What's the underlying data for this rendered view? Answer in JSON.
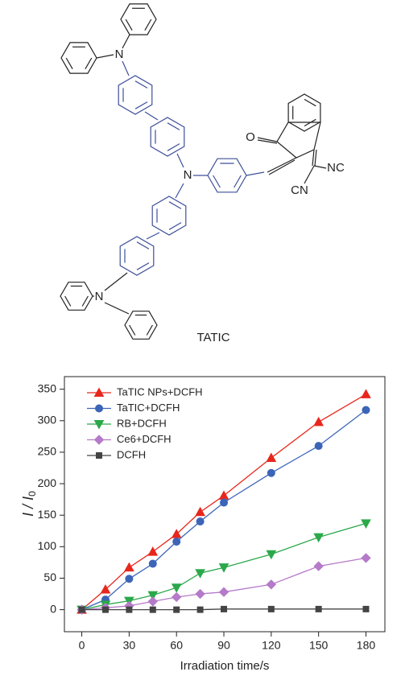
{
  "structure": {
    "atoms": [
      "N",
      "N",
      "N",
      "O",
      "NC",
      "CN"
    ],
    "label": "TATIC"
  },
  "chart_data": {
    "type": "line",
    "xlabel": "Irradiation time/s",
    "ylabel": {
      "main": "I / I",
      "sub": "0"
    },
    "x": [
      0,
      15,
      30,
      45,
      60,
      75,
      90,
      120,
      150,
      180
    ],
    "xlim": [
      -11,
      192
    ],
    "xticks": [
      0,
      30,
      60,
      90,
      120,
      150,
      180
    ],
    "ylim": [
      -35,
      370
    ],
    "yticks": [
      0,
      50,
      100,
      150,
      200,
      250,
      300,
      350
    ],
    "legend": "upper left",
    "series": [
      {
        "name": "TaTIC NPs+DCFH",
        "color": "#e8261c",
        "marker": "triangle-up",
        "values": [
          0,
          32,
          67,
          92,
          120,
          155,
          181,
          241,
          298,
          342
        ]
      },
      {
        "name": "TaTIC+DCFH",
        "color": "#3c65b8",
        "marker": "circle",
        "values": [
          0,
          16,
          49,
          73,
          108,
          140,
          170,
          217,
          260,
          317
        ]
      },
      {
        "name": "RB+DCFH",
        "color": "#2aa84a",
        "marker": "triangle-down",
        "values": [
          0,
          8,
          14,
          23,
          35,
          58,
          67,
          88,
          115,
          137
        ]
      },
      {
        "name": "Ce6+DCFH",
        "color": "#b57ac9",
        "marker": "diamond",
        "values": [
          0,
          3,
          6,
          13,
          20,
          25,
          28,
          40,
          69,
          82
        ]
      },
      {
        "name": "DCFH",
        "color": "#444444",
        "marker": "square",
        "values": [
          0,
          0,
          0,
          0,
          0,
          0,
          1,
          1,
          1,
          1
        ]
      }
    ]
  }
}
